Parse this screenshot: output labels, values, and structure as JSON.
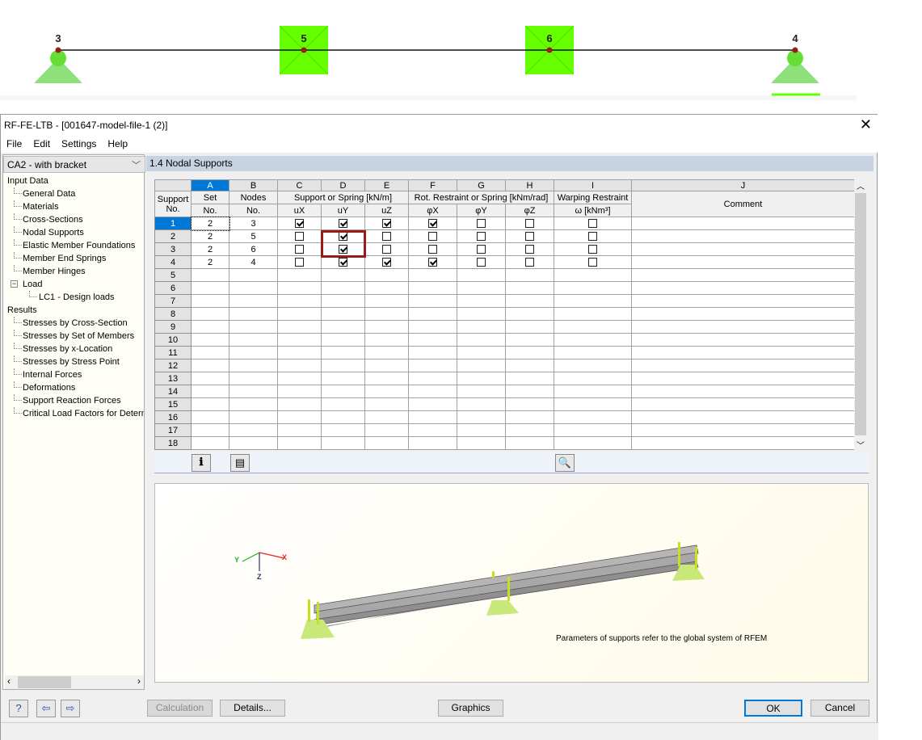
{
  "diagram": {
    "nodes": [
      {
        "label": "3",
        "support": "hinged"
      },
      {
        "label": "5",
        "support": "lateral"
      },
      {
        "label": "6",
        "support": "lateral"
      },
      {
        "label": "4",
        "support": "hinged"
      }
    ],
    "colors": {
      "support": "#66ff00",
      "pin": "#7cde5a",
      "node": "#9b1b1b"
    }
  },
  "window": {
    "title": "RF-FE-LTB - [001647-model-file-1 (2)]",
    "close_icon": "close-icon"
  },
  "menu": [
    "File",
    "Edit",
    "Settings",
    "Help"
  ],
  "case_select": {
    "value": "CA2 - with bracket"
  },
  "tree": [
    {
      "label": "Input Data",
      "level": 0
    },
    {
      "label": "General Data",
      "level": 1
    },
    {
      "label": "Materials",
      "level": 1
    },
    {
      "label": "Cross-Sections",
      "level": 1
    },
    {
      "label": "Nodal Supports",
      "level": 1
    },
    {
      "label": "Elastic Member Foundations",
      "level": 1
    },
    {
      "label": "Member End Springs",
      "level": 1
    },
    {
      "label": "Member Hinges",
      "level": 1
    },
    {
      "label": "Load",
      "level": "exp"
    },
    {
      "label": "LC1 - Design loads",
      "level": 2
    },
    {
      "label": "Results",
      "level": 0
    },
    {
      "label": "Stresses by Cross-Section",
      "level": 1
    },
    {
      "label": "Stresses by Set of Members",
      "level": 1
    },
    {
      "label": "Stresses by x-Location",
      "level": 1
    },
    {
      "label": "Stresses by Stress Point",
      "level": 1
    },
    {
      "label": "Internal Forces",
      "level": 1
    },
    {
      "label": "Deformations",
      "level": 1
    },
    {
      "label": "Support Reaction Forces",
      "level": 1
    },
    {
      "label": "Critical Load Factors for Determ",
      "level": 1
    }
  ],
  "section_title": "1.4 Nodal Supports",
  "table": {
    "letters": [
      "A",
      "B",
      "C",
      "D",
      "E",
      "F",
      "G",
      "H",
      "I",
      "J"
    ],
    "h_support": "Support",
    "h_no": "No.",
    "h_set": "Set",
    "h_nodes": "Nodes",
    "h_spring": "Support or Spring [kN/m]",
    "h_rot": "Rot. Restraint or Spring [kNm/rad]",
    "h_warp": "Warping Restraint",
    "h_comment": "Comment",
    "sub": [
      "uX",
      "uY",
      "uZ",
      "φX",
      "φY",
      "φZ",
      "ω [kNm³]"
    ],
    "rows": [
      {
        "no": "1",
        "set": "2",
        "node": "3",
        "checks": [
          true,
          true,
          true,
          true,
          false,
          false,
          false
        ]
      },
      {
        "no": "2",
        "set": "2",
        "node": "5",
        "checks": [
          false,
          true,
          false,
          false,
          false,
          false,
          false
        ]
      },
      {
        "no": "3",
        "set": "2",
        "node": "6",
        "checks": [
          false,
          true,
          false,
          false,
          false,
          false,
          false
        ]
      },
      {
        "no": "4",
        "set": "2",
        "node": "4",
        "checks": [
          false,
          true,
          true,
          true,
          false,
          false,
          false
        ]
      }
    ],
    "empty_rows": [
      "5",
      "6",
      "7",
      "8",
      "9",
      "10",
      "11",
      "12",
      "13",
      "14",
      "15",
      "16",
      "17",
      "18"
    ]
  },
  "graphic": {
    "note": "Parameters of supports refer to the global system of RFEM",
    "axes": {
      "x": "X",
      "y": "Y",
      "z": "Z"
    }
  },
  "buttons": {
    "calculation": "Calculation",
    "details": "Details...",
    "graphics": "Graphics",
    "ok": "OK",
    "cancel": "Cancel"
  }
}
